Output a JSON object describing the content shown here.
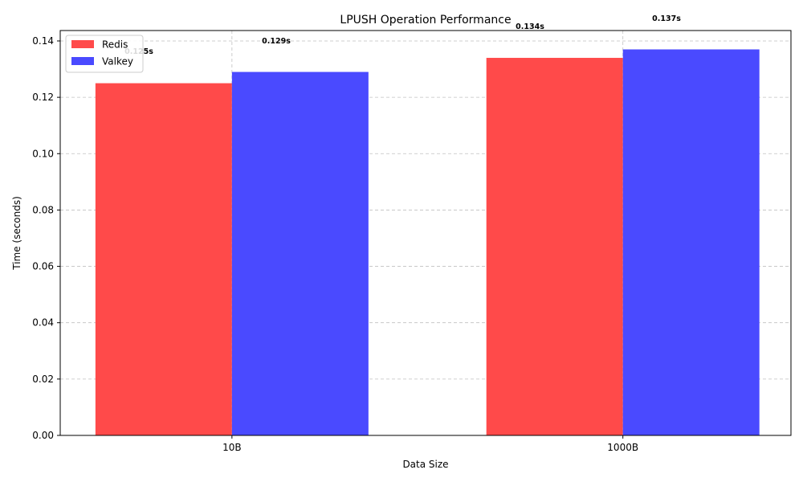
{
  "chart_data": {
    "type": "bar",
    "title": "LPUSH Operation Performance",
    "xlabel": "Data Size",
    "ylabel": "Time (seconds)",
    "categories": [
      "10B",
      "1000B"
    ],
    "series": [
      {
        "name": "Redis",
        "values": [
          0.125,
          0.134
        ],
        "labels": [
          "0.125s",
          "0.134s"
        ],
        "color": "#ff4a4a"
      },
      {
        "name": "Valkey",
        "values": [
          0.129,
          0.137
        ],
        "labels": [
          "0.129s",
          "0.137s"
        ],
        "color": "#4a4aff"
      }
    ],
    "ylim": [
      0,
      0.1437
    ],
    "yticks": [
      0.0,
      0.02,
      0.04,
      0.06,
      0.08,
      0.1,
      0.12,
      0.14
    ],
    "ytick_labels": [
      "0.00",
      "0.02",
      "0.04",
      "0.06",
      "0.08",
      "0.10",
      "0.12",
      "0.14"
    ],
    "grid": true,
    "legend_position": "top-left"
  }
}
